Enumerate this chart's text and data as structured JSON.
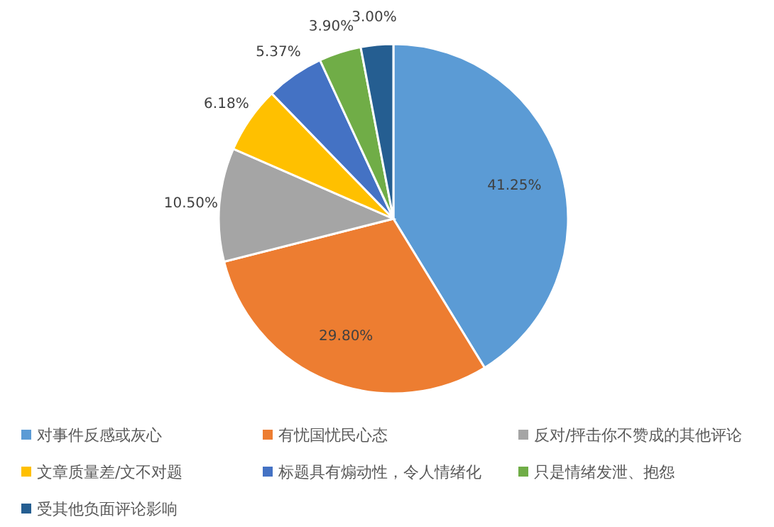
{
  "chart_data": {
    "type": "pie",
    "categories": [
      "对事件反感或灰心",
      "有忧国忧民心态",
      "反对/抨击你不赞成的其他评论",
      "文章质量差/文不对题",
      "标题具有煽动性，令人情绪化",
      "只是情绪发泄、抱怨",
      "受其他负面评论影响"
    ],
    "values": [
      41.25,
      29.8,
      10.5,
      6.18,
      5.37,
      3.9,
      3.0
    ],
    "value_labels": [
      "41.25%",
      "29.80%",
      "10.50%",
      "6.18%",
      "5.37%",
      "3.90%",
      "3.00%"
    ],
    "colors": [
      "#5b9bd5",
      "#ed7d31",
      "#a5a5a5",
      "#ffc000",
      "#4472c4",
      "#70ad47",
      "#255e91"
    ],
    "legend": "bottom"
  }
}
